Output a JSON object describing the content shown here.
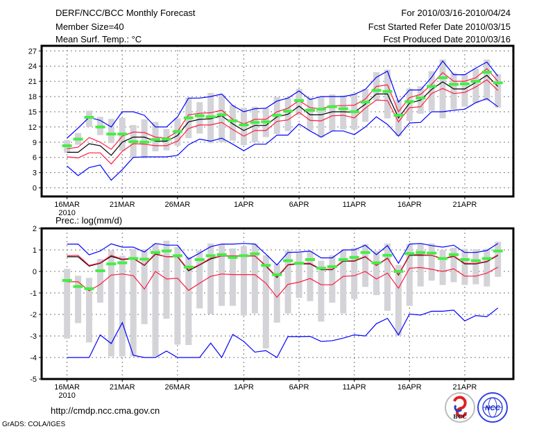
{
  "header": {
    "title": "DERF/NCC/BCC Monthly Forecast",
    "member_size": "Member Size=40",
    "variable": "Mean Surf. Temp.: °C",
    "period": "For 2010/03/16-2010/04/24",
    "started": "Fcst Started Refer Date 2010/03/15",
    "produced": "Fcst Produced Date 2010/03/16"
  },
  "footer": {
    "url": "http://cmdp.ncc.cma.gov.cn",
    "credit": "GrADS: COLA/IGES",
    "logo_bcc": "BCC",
    "logo_ncc": "NCC"
  },
  "colors": {
    "max_min": "#0000ff",
    "spread": "#ff1a40",
    "mean": "#000000",
    "observed": "#44ee44",
    "range_bar": "#d3d3d8"
  },
  "chart_data": [
    {
      "type": "line",
      "title": "Mean Surf. Temp.: °C",
      "xlabel": "",
      "ylabel": "",
      "x_days_from": "2010-03-16",
      "x_ticks": [
        {
          "day": 0,
          "label": "16MAR"
        },
        {
          "day": 5,
          "label": "21MAR"
        },
        {
          "day": 10,
          "label": "26MAR"
        },
        {
          "day": 16,
          "label": "1APR"
        },
        {
          "day": 21,
          "label": "6APR"
        },
        {
          "day": 26,
          "label": "11APR"
        },
        {
          "day": 31,
          "label": "16APR"
        },
        {
          "day": 36,
          "label": "21APR"
        }
      ],
      "x_year_label": "2010",
      "xlim": [
        -2.3,
        40.4
      ],
      "ylim": [
        -1.7,
        28
      ],
      "y_ticks": [
        0,
        3,
        6,
        9,
        12,
        15,
        18,
        21,
        24,
        27
      ],
      "grid": true,
      "series": [
        {
          "name": "ensemble mean",
          "color": "mean",
          "values": [
            7.0,
            7.0,
            8.7,
            8.3,
            6.4,
            9.0,
            10.0,
            10.0,
            9.2,
            9.2,
            10.3,
            13.0,
            13.5,
            13.6,
            14.2,
            12.6,
            11.3,
            12.3,
            12.3,
            14.0,
            14.5,
            16.1,
            14.4,
            14.4,
            15.0,
            15.0,
            14.9,
            16.5,
            18.5,
            18.5,
            13.8,
            16.7,
            17.3,
            19.4,
            20.9,
            19.5,
            19.5,
            20.8,
            22.2,
            20.0
          ]
        },
        {
          "name": "upper spread",
          "color": "spread",
          "values": [
            7.7,
            8.0,
            9.9,
            9.0,
            7.6,
            10.2,
            11.0,
            10.9,
            10.0,
            9.8,
            11.1,
            14.4,
            14.7,
            14.8,
            15.3,
            13.5,
            12.6,
            13.5,
            13.5,
            15.0,
            15.7,
            17.2,
            15.8,
            15.6,
            16.2,
            16.2,
            16.3,
            17.5,
            20.0,
            20.3,
            15.0,
            17.8,
            18.4,
            20.4,
            22.7,
            21.0,
            21.0,
            21.7,
            23.5,
            21.0
          ]
        },
        {
          "name": "lower spread",
          "color": "spread",
          "values": [
            6.1,
            5.9,
            6.9,
            6.9,
            4.7,
            7.2,
            8.7,
            8.6,
            8.3,
            8.3,
            9.2,
            11.7,
            12.4,
            12.4,
            12.9,
            11.5,
            10.2,
            11.3,
            11.3,
            13.1,
            13.4,
            14.9,
            13.3,
            13.2,
            14.2,
            14.3,
            13.8,
            15.7,
            17.3,
            17.2,
            13.0,
            15.8,
            16.0,
            18.6,
            19.6,
            18.6,
            18.8,
            19.9,
            21.3,
            19.2
          ]
        },
        {
          "name": "maximum",
          "color": "max_min",
          "values": [
            9.8,
            11.8,
            13.9,
            13.3,
            12.0,
            15.0,
            15.0,
            14.3,
            12.0,
            12.0,
            14.0,
            17.7,
            17.7,
            18.0,
            18.5,
            16.2,
            15.0,
            15.6,
            15.7,
            17.1,
            17.7,
            19.1,
            17.4,
            18.0,
            18.0,
            18.0,
            18.4,
            19.4,
            21.8,
            23.0,
            16.9,
            19.3,
            19.3,
            21.8,
            25.0,
            22.3,
            22.3,
            23.6,
            24.8,
            22.0
          ]
        },
        {
          "name": "minimum",
          "color": "max_min",
          "values": [
            4.3,
            2.4,
            4.0,
            4.5,
            1.5,
            3.6,
            6.0,
            6.1,
            6.1,
            6.1,
            6.4,
            8.5,
            9.6,
            9.2,
            9.8,
            8.6,
            7.3,
            8.6,
            8.6,
            10.4,
            10.4,
            12.6,
            11.2,
            10.0,
            11.2,
            11.2,
            10.5,
            12.0,
            14.0,
            12.5,
            10.2,
            12.8,
            12.9,
            15.0,
            15.0,
            15.3,
            15.5,
            16.8,
            17.6,
            16.0
          ]
        }
      ],
      "observed": [
        8.3,
        9.6,
        13.9,
        12.0,
        10.6,
        10.6,
        9.1,
        9.0,
        9.5,
        9.6,
        11.1,
        13.8,
        14.2,
        14.0,
        14.4,
        13.2,
        12.4,
        12.9,
        13.0,
        14.3,
        15.1,
        17.2,
        15.3,
        15.5,
        16.0,
        15.6,
        15.0,
        16.9,
        19.2,
        19.0,
        14.3,
        17.0,
        17.7,
        20.0,
        21.7,
        20.4,
        20.5,
        21.0,
        22.8,
        20.7
      ],
      "range_low": [
        6.9,
        8.5,
        12.0,
        10.4,
        8.8,
        7.3,
        5.9,
        5.8,
        7.2,
        7.4,
        8.3,
        9.8,
        10.7,
        8.8,
        9.0,
        9.3,
        8.4,
        9.0,
        10.0,
        10.6,
        11.2,
        14.3,
        11.3,
        9.9,
        11.2,
        11.5,
        11.5,
        13.0,
        17.2,
        13.7,
        10.2,
        13.2,
        14.6,
        15.2,
        13.7,
        15.5,
        16.0,
        16.7,
        17.2,
        15.8
      ],
      "range_high": [
        9.4,
        10.8,
        15.2,
        14.0,
        13.6,
        13.8,
        12.4,
        13.5,
        13.0,
        11.6,
        13.7,
        17.8,
        16.9,
        18.7,
        18.4,
        16.4,
        15.8,
        16.0,
        15.7,
        17.9,
        17.8,
        19.5,
        17.8,
        18.0,
        18.4,
        18.2,
        18.6,
        19.5,
        22.8,
        23.3,
        17.4,
        19.6,
        20.0,
        23.0,
        25.3,
        22.7,
        22.4,
        23.5,
        25.3,
        22.4
      ]
    },
    {
      "type": "line",
      "title": "Prec.: log(mm/d)",
      "xlabel": "",
      "ylabel": "",
      "x_days_from": "2010-03-16",
      "x_ticks": [
        {
          "day": 0,
          "label": "16MAR"
        },
        {
          "day": 5,
          "label": "21MAR"
        },
        {
          "day": 10,
          "label": "26MAR"
        },
        {
          "day": 16,
          "label": "1APR"
        },
        {
          "day": 21,
          "label": "6APR"
        },
        {
          "day": 26,
          "label": "11APR"
        },
        {
          "day": 31,
          "label": "16APR"
        },
        {
          "day": 36,
          "label": "21APR"
        }
      ],
      "x_year_label": "2010",
      "xlim": [
        -2.3,
        40.4
      ],
      "ylim": [
        -5,
        2
      ],
      "y_ticks": [
        -5,
        -4,
        -3,
        -2,
        -1,
        0,
        1,
        2
      ],
      "grid": true,
      "series": [
        {
          "name": "ensemble mean",
          "color": "mean",
          "values": [
            0.68,
            0.68,
            0.25,
            0.38,
            0.7,
            0.55,
            0.6,
            0.28,
            0.8,
            0.68,
            0.68,
            0.03,
            0.3,
            0.58,
            0.72,
            0.72,
            0.72,
            0.72,
            0.25,
            -0.28,
            0.3,
            0.35,
            0.35,
            0.08,
            0.08,
            0.48,
            0.48,
            0.68,
            0.28,
            0.62,
            -0.17,
            0.75,
            0.75,
            0.75,
            0.58,
            0.7,
            0.35,
            0.35,
            0.45,
            0.75
          ]
        },
        {
          "name": "upper spread",
          "color": "spread",
          "values": [
            0.73,
            0.75,
            0.28,
            0.4,
            0.75,
            0.57,
            0.62,
            0.3,
            0.83,
            0.68,
            0.7,
            0.07,
            0.32,
            0.62,
            0.72,
            0.72,
            0.72,
            0.72,
            0.27,
            -0.25,
            0.32,
            0.38,
            0.38,
            0.1,
            0.1,
            0.5,
            0.5,
            0.7,
            0.27,
            0.6,
            -0.15,
            0.78,
            0.78,
            0.75,
            0.6,
            0.72,
            0.38,
            0.37,
            0.47,
            0.77
          ]
        },
        {
          "name": "lower spread",
          "color": "spread",
          "values": [
            -0.48,
            -0.48,
            -0.9,
            -0.6,
            -0.17,
            -0.12,
            -0.2,
            -0.82,
            0.0,
            -0.35,
            -0.32,
            -0.88,
            -0.55,
            -0.23,
            -0.12,
            -0.15,
            -0.15,
            -0.15,
            -0.55,
            -1.2,
            -0.6,
            -0.5,
            -0.33,
            -0.62,
            -0.62,
            -0.23,
            -0.2,
            0.0,
            -0.35,
            -0.08,
            -0.78,
            0.15,
            0.18,
            0.1,
            0.0,
            0.12,
            -0.22,
            -0.22,
            -0.08,
            0.2
          ]
        },
        {
          "name": "maximum",
          "color": "max_min",
          "values": [
            1.27,
            1.27,
            0.77,
            0.95,
            1.28,
            1.13,
            1.13,
            0.9,
            1.3,
            1.22,
            1.22,
            0.57,
            0.85,
            1.15,
            1.27,
            1.27,
            1.3,
            1.27,
            0.8,
            0.3,
            0.88,
            0.9,
            0.95,
            0.63,
            0.63,
            1.0,
            1.0,
            1.22,
            0.78,
            1.2,
            0.38,
            1.27,
            1.3,
            1.2,
            1.13,
            1.22,
            0.88,
            0.88,
            0.97,
            1.3
          ]
        },
        {
          "name": "minimum",
          "color": "max_min",
          "values": [
            -4.0,
            -4.0,
            -4.0,
            -2.95,
            -3.35,
            -2.38,
            -3.9,
            -4.0,
            -4.0,
            -3.7,
            -4.0,
            -4.0,
            -4.0,
            -3.33,
            -4.0,
            -2.93,
            -3.25,
            -3.75,
            -3.68,
            -4.0,
            -3.03,
            -3.03,
            -3.02,
            -3.25,
            -3.22,
            -3.1,
            -2.95,
            -3.0,
            -2.43,
            -2.18,
            -2.95,
            -1.98,
            -2.03,
            -1.85,
            -1.85,
            -1.8,
            -2.3,
            -2.05,
            -2.1,
            -1.7
          ]
        }
      ],
      "observed": [
        -0.42,
        -0.7,
        -0.8,
        0.03,
        0.35,
        0.4,
        0.6,
        0.57,
        0.88,
        0.95,
        0.73,
        0.2,
        0.55,
        0.73,
        0.78,
        0.65,
        0.73,
        0.82,
        0.28,
        -0.15,
        0.5,
        0.38,
        0.55,
        0.15,
        0.22,
        0.55,
        0.65,
        0.88,
        0.4,
        0.75,
        0.0,
        0.83,
        0.88,
        0.85,
        0.6,
        0.78,
        0.55,
        0.5,
        0.6,
        0.95
      ],
      "range_low": [
        -3.12,
        -2.4,
        -3.3,
        -1.45,
        -3.95,
        -3.95,
        -3.95,
        -2.45,
        -3.95,
        -2.2,
        -3.4,
        -3.42,
        -1.72,
        -1.98,
        -1.6,
        -1.6,
        -2.05,
        -1.95,
        -3.58,
        -2.38,
        -1.95,
        -1.23,
        -1.38,
        -2.33,
        -1.45,
        -1.95,
        -1.28,
        -0.72,
        -1.1,
        -1.83,
        -3.0,
        -1.6,
        -0.7,
        -0.43,
        -0.63,
        -0.5,
        -0.63,
        -0.6,
        -0.7,
        -0.25
      ],
      "range_high": [
        0.12,
        -0.2,
        -0.3,
        0.58,
        0.98,
        0.73,
        1.05,
        1.03,
        1.3,
        1.43,
        1.13,
        0.68,
        0.97,
        1.3,
        1.25,
        1.07,
        1.18,
        1.3,
        0.75,
        0.35,
        0.98,
        0.87,
        0.95,
        0.5,
        0.75,
        0.97,
        1.1,
        1.27,
        0.95,
        1.3,
        0.3,
        1.27,
        1.3,
        1.3,
        1.0,
        1.1,
        1.05,
        1.03,
        1.05,
        1.38
      ]
    }
  ]
}
